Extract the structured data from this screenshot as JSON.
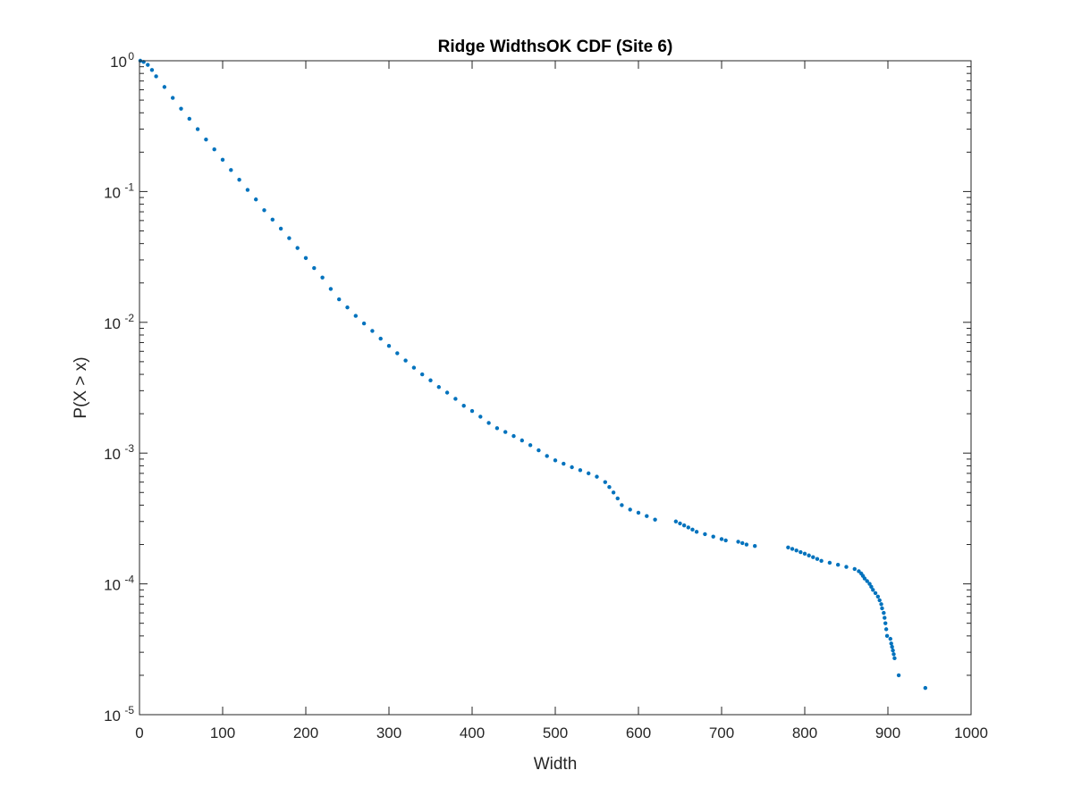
{
  "chart_data": {
    "type": "scatter",
    "title": "Ridge WidthsOK CDF (Site 6)",
    "xlabel": "Width",
    "ylabel": "P(X > x)",
    "xlim": [
      0,
      1000
    ],
    "ylim": [
      1e-05,
      1
    ],
    "yscale": "log",
    "grid": false,
    "legend": "none",
    "marker_color": "#0072BD",
    "xticks": [
      0,
      100,
      200,
      300,
      400,
      500,
      600,
      700,
      800,
      900,
      1000
    ],
    "xtick_labels": [
      "0",
      "100",
      "200",
      "300",
      "400",
      "500",
      "600",
      "700",
      "800",
      "900",
      "1000"
    ],
    "yticks": [
      1e-05,
      0.0001,
      0.001,
      0.01,
      0.1,
      1
    ],
    "ytick_labels": [
      {
        "base": "10",
        "exp": "-5"
      },
      {
        "base": "10",
        "exp": "-4"
      },
      {
        "base": "10",
        "exp": "-3"
      },
      {
        "base": "10",
        "exp": "-2"
      },
      {
        "base": "10",
        "exp": "-1"
      },
      {
        "base": "10",
        "exp": "0"
      }
    ],
    "series": [
      {
        "x": [
          1,
          5,
          10,
          15,
          20,
          30,
          40,
          50,
          60,
          70,
          80,
          90,
          100,
          110,
          120,
          130,
          140,
          150,
          160,
          170,
          180,
          190,
          200,
          210,
          220,
          230,
          240,
          250,
          260,
          270,
          280,
          290,
          300,
          310,
          320,
          330,
          340,
          350,
          360,
          370,
          380,
          390,
          400,
          410,
          420,
          430,
          440,
          450,
          460,
          470,
          480,
          490,
          500,
          510,
          520,
          530,
          540,
          550,
          560,
          565,
          570,
          575,
          580,
          590,
          600,
          610,
          620,
          645,
          650,
          655,
          660,
          665,
          670,
          680,
          690,
          700,
          705,
          720,
          725,
          730,
          740,
          780,
          785,
          790,
          795,
          800,
          805,
          810,
          815,
          820,
          830,
          840,
          850,
          860,
          865,
          868,
          870,
          872,
          875,
          878,
          880,
          882,
          885,
          888,
          890,
          892,
          893,
          895,
          896,
          897,
          898,
          899,
          903,
          904,
          905,
          906,
          907,
          908,
          913,
          945
        ],
        "y": [
          1.0,
          0.98,
          0.93,
          0.85,
          0.76,
          0.63,
          0.52,
          0.43,
          0.36,
          0.3,
          0.25,
          0.21,
          0.175,
          0.146,
          0.123,
          0.103,
          0.087,
          0.072,
          0.061,
          0.052,
          0.044,
          0.037,
          0.031,
          0.026,
          0.022,
          0.018,
          0.015,
          0.013,
          0.0112,
          0.0098,
          0.0086,
          0.0075,
          0.0066,
          0.0058,
          0.0051,
          0.0045,
          0.004,
          0.0036,
          0.0032,
          0.0029,
          0.0026,
          0.0023,
          0.0021,
          0.0019,
          0.0017,
          0.00155,
          0.00145,
          0.00135,
          0.00125,
          0.00115,
          0.00105,
          0.00095,
          0.00088,
          0.00083,
          0.00078,
          0.00074,
          0.0007,
          0.00066,
          0.0006,
          0.00055,
          0.0005,
          0.00045,
          0.0004,
          0.00037,
          0.00035,
          0.00033,
          0.00031,
          0.0003,
          0.00029,
          0.00028,
          0.00027,
          0.00026,
          0.00025,
          0.00024,
          0.00023,
          0.00022,
          0.000215,
          0.00021,
          0.000205,
          0.0002,
          0.000195,
          0.00019,
          0.000185,
          0.00018,
          0.000175,
          0.00017,
          0.000165,
          0.00016,
          0.000155,
          0.00015,
          0.000145,
          0.00014,
          0.000135,
          0.00013,
          0.000125,
          0.00012,
          0.000115,
          0.00011,
          0.000105,
          0.0001,
          9.5e-05,
          9e-05,
          8.5e-05,
          8e-05,
          7.5e-05,
          7e-05,
          6.5e-05,
          6e-05,
          5.5e-05,
          5e-05,
          4.5e-05,
          4e-05,
          3.8e-05,
          3.5e-05,
          3.3e-05,
          3.1e-05,
          2.9e-05,
          2.7e-05,
          2e-05,
          1.6e-05
        ]
      }
    ]
  }
}
